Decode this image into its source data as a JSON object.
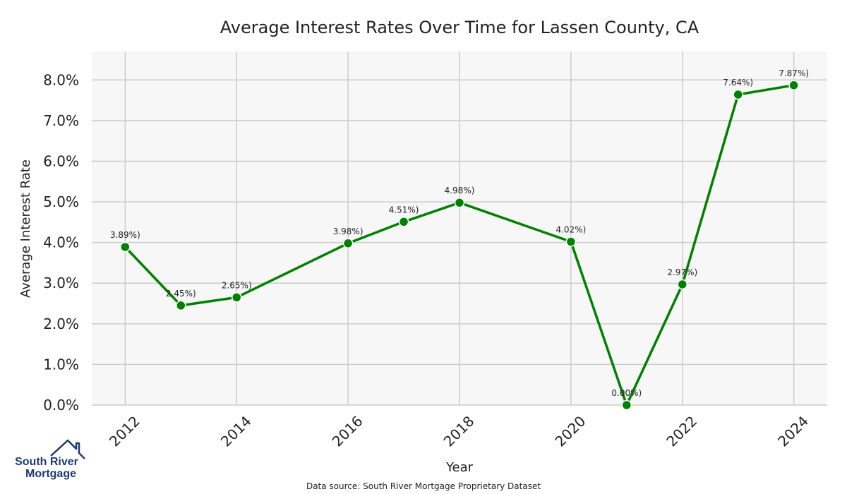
{
  "chart_data": {
    "type": "line",
    "title": "Average Interest Rates Over Time for Lassen County, CA",
    "xlabel": "Year",
    "ylabel": "Average Interest Rate",
    "x": [
      2012,
      2013,
      2014,
      2016,
      2017,
      2018,
      2020,
      2021,
      2022,
      2023,
      2024
    ],
    "values": [
      3.89,
      2.45,
      2.65,
      3.98,
      4.51,
      4.98,
      4.02,
      0.0,
      2.97,
      7.64,
      7.87
    ],
    "data_labels": [
      "3.89%)",
      "2.45%)",
      "2.65%)",
      "3.98%)",
      "4.51%)",
      "4.98%)",
      "4.02%)",
      "0.00%)",
      "2.97%)",
      "7.64%)",
      "7.87%)"
    ],
    "xticks": [
      "2012",
      "2014",
      "2016",
      "2018",
      "2020",
      "2022",
      "2024"
    ],
    "yticks": [
      "0.0%",
      "1.0%",
      "2.0%",
      "3.0%",
      "4.0%",
      "5.0%",
      "6.0%",
      "7.0%",
      "8.0%"
    ],
    "xlim": [
      2011.4,
      2024.6
    ],
    "ylim": [
      0,
      8.7
    ],
    "grid": true,
    "line_color": "#008000",
    "plot_background": "#f7f7f7",
    "grid_color": "#cccccc"
  },
  "source_note": "Data source: South River Mortgage Proprietary Dataset",
  "logo": {
    "line1": "South River",
    "line2": "Mortgage",
    "icon": "house-roof-icon",
    "color": "#1f3a6e"
  }
}
